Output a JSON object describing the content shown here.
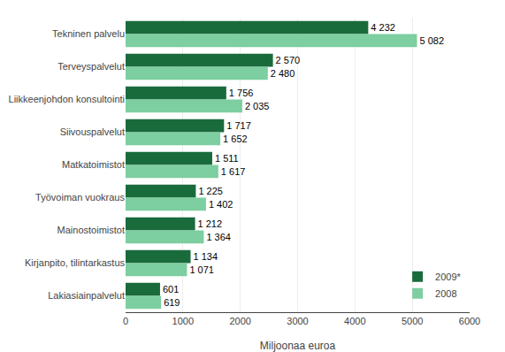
{
  "chart_data": {
    "type": "bar",
    "orientation": "horizontal",
    "categories": [
      "Tekninen palvelu",
      "Terveyspalvelut",
      "Liikkeenjohdon konsultointi",
      "Siivouspalvelut",
      "Matkatoimistot",
      "Työvoiman vuokraus",
      "Mainostoimistot",
      "Kirjanpito, tilintarkastus",
      "Lakiasiainpalvelut"
    ],
    "series": [
      {
        "name": "2009*",
        "color": "#1a6b3c",
        "values": [
          4232,
          2570,
          1756,
          1717,
          1511,
          1225,
          1212,
          1134,
          601
        ],
        "value_labels": [
          "4 232",
          "2 570",
          "1 756",
          "1 717",
          "1 511",
          "1 225",
          "1 212",
          "1 134",
          "601"
        ]
      },
      {
        "name": "2008",
        "color": "#7dcea0",
        "values": [
          5082,
          2480,
          2035,
          1652,
          1617,
          1402,
          1364,
          1071,
          619
        ],
        "value_labels": [
          "5 082",
          "2 480",
          "2 035",
          "1 652",
          "1 617",
          "1 402",
          "1 364",
          "1 071",
          "619"
        ]
      }
    ],
    "xlabel": "Miljoonaa euroa",
    "xlim": [
      0,
      6000
    ],
    "xticks": [
      0,
      1000,
      2000,
      3000,
      4000,
      5000,
      6000
    ],
    "grid": true,
    "legend": "lower right",
    "data_labels": true
  }
}
